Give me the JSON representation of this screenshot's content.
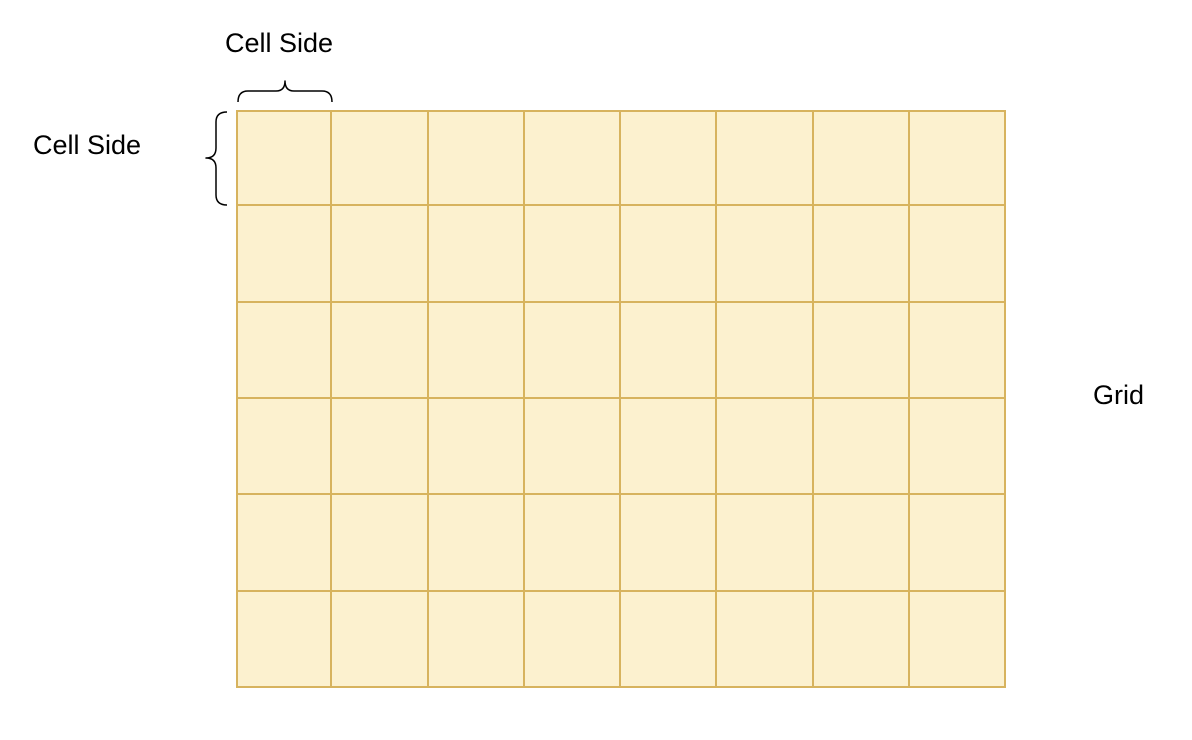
{
  "labels": {
    "cell_side_top": "Cell Side",
    "cell_side_left": "Cell Side",
    "grid": "Grid"
  },
  "grid": {
    "rows": 6,
    "columns": 8,
    "fill_color": "#fcf1cf",
    "line_color": "#d7b35e"
  },
  "colors": {
    "background": "#ffffff",
    "text": "#000000",
    "brace": "#000000"
  }
}
